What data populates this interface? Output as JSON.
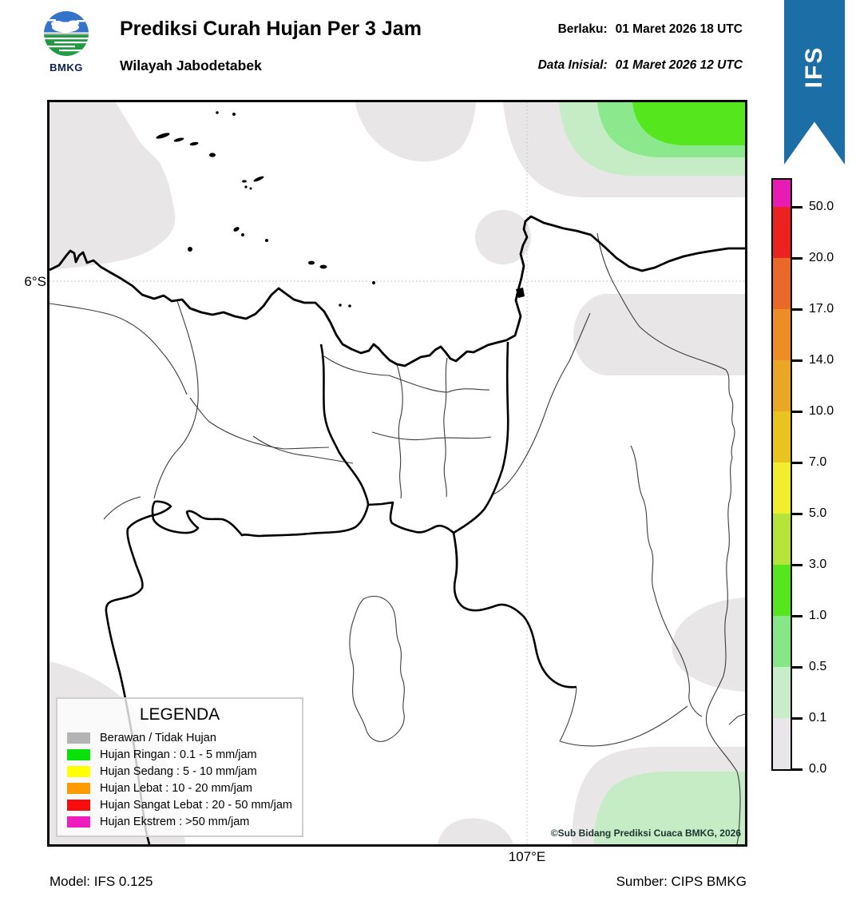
{
  "header": {
    "logo_text": "BMKG",
    "title": "Prediksi Curah Hujan Per 3 Jam",
    "subtitle": "Wilayah Jabodetabek",
    "valid_label": "Berlaku:",
    "valid_value": "01 Maret 2026 18 UTC",
    "init_label": "Data Inisial:",
    "init_value": "01 Maret 2026 12 UTC",
    "ribbon_text": "IFS"
  },
  "map": {
    "lat_label": "6°S",
    "lon_label": "107°E",
    "copyright": "©Sub Bidang Prediksi Cuaca BMKG, 2026",
    "fill_colors": {
      "cloud_gray": "#e8e6e7",
      "rain_light_green": "#c5ecc5",
      "rain_medium_green": "#8ce88c",
      "rain_bright_green": "#55e61e"
    }
  },
  "legend": {
    "title": "LEGENDA",
    "items": [
      {
        "color": "#b4b4b4",
        "label": "Berawan / Tidak Hujan"
      },
      {
        "color": "#0ae00a",
        "label": "Hujan Ringan : 0.1 - 5 mm/jam"
      },
      {
        "color": "#ffff00",
        "label": "Hujan Sedang : 5 - 10 mm/jam"
      },
      {
        "color": "#ff9a00",
        "label": "Hujan Lebat : 10 - 20 mm/jam"
      },
      {
        "color": "#f80b0b",
        "label": "Hujan Sangat Lebat : 20 - 50 mm/jam"
      },
      {
        "color": "#f01dbe",
        "label": "Hujan Ekstrem : >50 mm/jam"
      }
    ]
  },
  "colorbar": {
    "ticks": [
      "50.0",
      "20.0",
      "17.0",
      "14.0",
      "10.0",
      "7.0",
      "5.0",
      "3.0",
      "1.0",
      "0.5",
      "0.1",
      "0.0"
    ],
    "segment_colors": [
      "#e81cb4",
      "#ea2222",
      "#e8692a",
      "#ec8d26",
      "#eaa626",
      "#e9c31f",
      "#f0ee2e",
      "#b6e43a",
      "#55e620",
      "#87e787",
      "#c9edc9",
      "#e9e6e9"
    ]
  },
  "footer": {
    "model": "Model: IFS 0.125",
    "source": "Sumber: CIPS BMKG"
  },
  "theme": {
    "ribbon_blue": "#1b6ea6",
    "logo_blue": "#3373c9",
    "logo_green": "#219b43"
  }
}
